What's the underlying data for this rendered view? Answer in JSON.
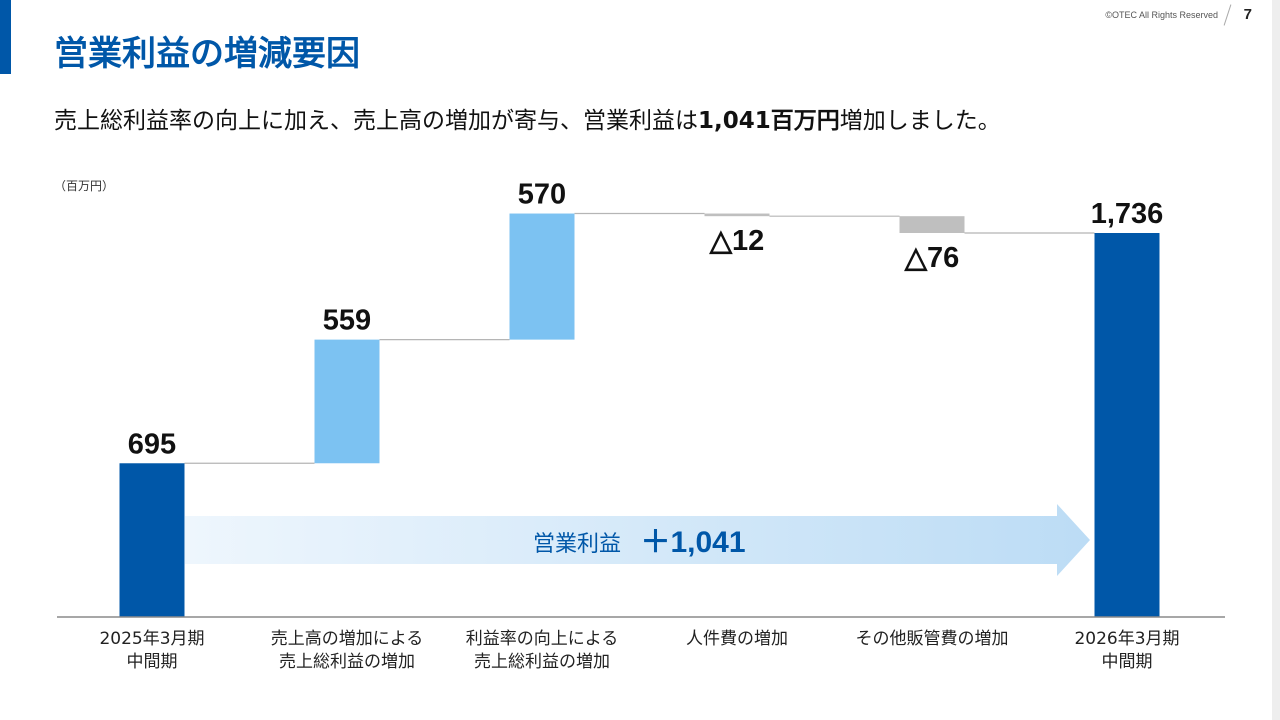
{
  "header": {
    "copyright": "©OTEC All Rights Reserved",
    "page_number": "7",
    "title": "営業利益の増減要因",
    "subtitle_pre": "売上総利益率の向上に加え、売上高の増加が寄与、営業利益は",
    "subtitle_bold": "1,041百万円",
    "subtitle_post": "増加しました。"
  },
  "colors": {
    "accent": "#0057a8",
    "increase": "#7cc2f2",
    "decrease": "#bfbfbf",
    "total": "#0057a8",
    "arrow": "#cfe6f8"
  },
  "chart_data": {
    "type": "waterfall",
    "unit_label": "（百万円）",
    "bars": [
      {
        "category": "2025年3月期\n中間期",
        "value": 695,
        "label": "695",
        "kind": "total"
      },
      {
        "category": "売上高の増加による\n売上総利益の増加",
        "value": 559,
        "label": "559",
        "kind": "increase"
      },
      {
        "category": "利益率の向上による\n売上総利益の増加",
        "value": 570,
        "label": "570",
        "kind": "increase"
      },
      {
        "category": "人件費の増加",
        "value": -12,
        "label": "△12",
        "kind": "decrease"
      },
      {
        "category": "その他販管費の増加",
        "value": -76,
        "label": "△76",
        "kind": "decrease"
      },
      {
        "category": "2026年3月期\n中間期",
        "value": 1736,
        "label": "1,736",
        "kind": "total"
      }
    ],
    "annotation": {
      "text": "営業利益",
      "value": "＋1,041"
    }
  }
}
